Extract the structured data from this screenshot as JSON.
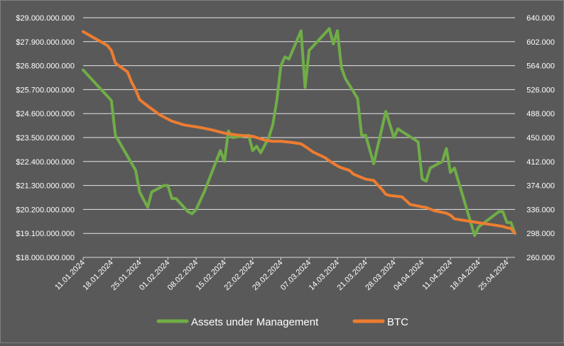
{
  "chart_data": {
    "type": "line",
    "title": "",
    "xlabel": "",
    "ylabel": "",
    "grid": true,
    "legend_position": "bottom",
    "x_ticks": [
      "11.01.2024",
      "18.01.2024",
      "25.01.2024",
      "01.02.2024",
      "08.02.2024",
      "15.02.2024",
      "22.02.2024",
      "29.02.2024",
      "07.03.2024",
      "14.03.2024",
      "21.03.2024",
      "28.03.2024",
      "04.04.2024",
      "11.04.2024",
      "18.04.2024",
      "25.04.2024"
    ],
    "y_left": {
      "min": 18000000000,
      "max": 29000000000,
      "step": 1100000000,
      "ticks": [
        "$18.000.000.000",
        "$19.100.000.000",
        "$20.200.000.000",
        "$21.300.000.000",
        "$22.400.000.000",
        "$23.500.000.000",
        "$24.600.000.000",
        "$25.700.000.000",
        "$26.800.000.000",
        "$27.900.000.000",
        "$29.000.000.000"
      ]
    },
    "y_right": {
      "min": 260000,
      "max": 640000,
      "step": 38000,
      "ticks": [
        "260.000",
        "298.000",
        "336.000",
        "374.000",
        "412.000",
        "450.000",
        "488.000",
        "526.000",
        "564.000",
        "602.000",
        "640.000"
      ]
    },
    "series": [
      {
        "name": "Assets under Management",
        "color": "#70ad47",
        "axis": "left",
        "x": [
          "11.01.2024",
          "18.01.2024",
          "19.01.2024",
          "24.01.2024",
          "25.01.2024",
          "27.01.2024",
          "28.01.2024",
          "29.01.2024",
          "31.01.2024",
          "01.02.2024",
          "02.02.2024",
          "03.02.2024",
          "06.02.2024",
          "07.02.2024",
          "08.02.2024",
          "10.02.2024",
          "14.02.2024",
          "15.02.2024",
          "16.02.2024",
          "17.02.2024",
          "21.02.2024",
          "22.02.2024",
          "23.02.2024",
          "24.02.2024",
          "26.02.2024",
          "27.02.2024",
          "28.02.2024",
          "29.02.2024",
          "01.03.2024",
          "02.03.2024",
          "05.03.2024",
          "06.03.2024",
          "07.03.2024",
          "12.03.2024",
          "13.03.2024",
          "14.03.2024",
          "15.03.2024",
          "16.03.2024",
          "19.03.2024",
          "20.03.2024",
          "21.03.2024",
          "23.03.2024",
          "26.03.2024",
          "28.03.2024",
          "29.03.2024",
          "03.04.2024",
          "04.04.2024",
          "05.04.2024",
          "06.04.2024",
          "09.04.2024",
          "10.04.2024",
          "11.04.2024",
          "12.04.2024",
          "17.04.2024",
          "18.04.2024",
          "23.04.2024",
          "24.04.2024",
          "25.04.2024",
          "26.04.2024",
          "27.04.2024"
        ],
        "values": [
          26600000000,
          25200000000,
          23600000000,
          22000000000,
          21000000000,
          20300000000,
          21000000000,
          21100000000,
          21300000000,
          21300000000,
          20700000000,
          20700000000,
          20100000000,
          20000000000,
          20200000000,
          21000000000,
          22900000000,
          22400000000,
          23800000000,
          23500000000,
          23600000000,
          22900000000,
          23100000000,
          22800000000,
          23500000000,
          24100000000,
          25200000000,
          26800000000,
          27200000000,
          27100000000,
          28400000000,
          25800000000,
          27500000000,
          28500000000,
          27800000000,
          28400000000,
          26700000000,
          26200000000,
          25300000000,
          23600000000,
          23600000000,
          22300000000,
          24700000000,
          23500000000,
          23900000000,
          23300000000,
          21600000000,
          21500000000,
          22100000000,
          22400000000,
          23000000000,
          21900000000,
          22100000000,
          19000000000,
          19400000000,
          20100000000,
          20100000000,
          19600000000,
          19600000000,
          19100000000
        ]
      },
      {
        "name": "BTC",
        "color": "#ed7d31",
        "axis": "right",
        "x": [
          "11.01.2024",
          "17.01.2024",
          "18.01.2024",
          "19.01.2024",
          "22.01.2024",
          "23.01.2024",
          "24.01.2024",
          "25.01.2024",
          "27.01.2024",
          "30.01.2024",
          "02.02.2024",
          "05.02.2024",
          "09.02.2024",
          "12.02.2024",
          "15.02.2024",
          "18.02.2024",
          "22.02.2024",
          "25.02.2024",
          "27.02.2024",
          "29.02.2024",
          "03.03.2024",
          "05.03.2024",
          "06.03.2024",
          "08.03.2024",
          "11.03.2024",
          "12.03.2024",
          "14.03.2024",
          "15.03.2024",
          "17.03.2024",
          "18.03.2024",
          "21.03.2024",
          "23.03.2024",
          "25.03.2024",
          "26.03.2024",
          "27.03.2024",
          "30.03.2024",
          "01.04.2024",
          "04.04.2024",
          "05.04.2024",
          "07.04.2024",
          "10.04.2024",
          "11.04.2024",
          "12.04.2024",
          "15.04.2024",
          "18.04.2024",
          "21.04.2024",
          "24.04.2024",
          "25.04.2024",
          "26.04.2024",
          "27.04.2024"
        ],
        "values": [
          618000,
          596000,
          588000,
          568000,
          554000,
          538000,
          526000,
          510000,
          500000,
          486000,
          476000,
          470000,
          466000,
          462000,
          457000,
          454000,
          452000,
          446000,
          444000,
          444000,
          442000,
          440000,
          436000,
          427000,
          418000,
          413000,
          405000,
          402000,
          398000,
          392000,
          384000,
          382000,
          368000,
          360000,
          358000,
          356000,
          344000,
          340000,
          339000,
          334000,
          330000,
          327000,
          321000,
          318000,
          315000,
          312000,
          309000,
          307000,
          306000,
          298000
        ]
      }
    ]
  }
}
